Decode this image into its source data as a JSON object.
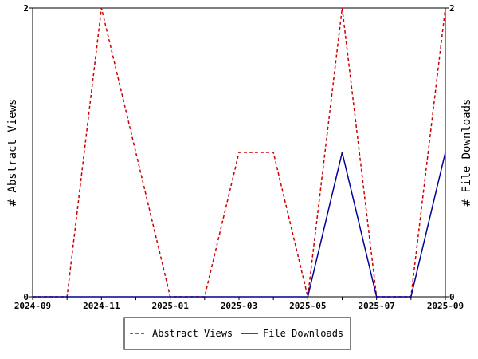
{
  "chart_data": {
    "type": "line",
    "x": [
      "2024-09",
      "2024-10",
      "2024-11",
      "2024-12",
      "2025-01",
      "2025-02",
      "2025-03",
      "2025-04",
      "2025-05",
      "2025-06",
      "2025-07",
      "2025-08",
      "2025-09"
    ],
    "x_tick_labels": [
      "2024-09",
      "2024-11",
      "2025-01",
      "2025-03",
      "2025-05",
      "2025-07",
      "2025-09"
    ],
    "series": [
      {
        "name": "Abstract Views",
        "axis": "left",
        "color": "#cc0000",
        "style": "dashed",
        "values": [
          0,
          0,
          2,
          1,
          0,
          0,
          1,
          1,
          0,
          2,
          0,
          0,
          2
        ]
      },
      {
        "name": "File Downloads",
        "axis": "right",
        "color": "#000099",
        "style": "solid",
        "values": [
          0,
          0,
          0,
          0,
          0,
          0,
          0,
          0,
          0,
          1,
          0,
          0,
          1
        ]
      }
    ],
    "ylabel_left": "# Abstract Views",
    "ylabel_right": "# File Downloads",
    "ylim_left": [
      0,
      2
    ],
    "ylim_right": [
      0,
      2
    ],
    "y_tick_labels_left": [
      "0",
      "2"
    ],
    "y_tick_labels_right": [
      "0",
      "2"
    ],
    "grid": false,
    "legend": "bottom"
  }
}
